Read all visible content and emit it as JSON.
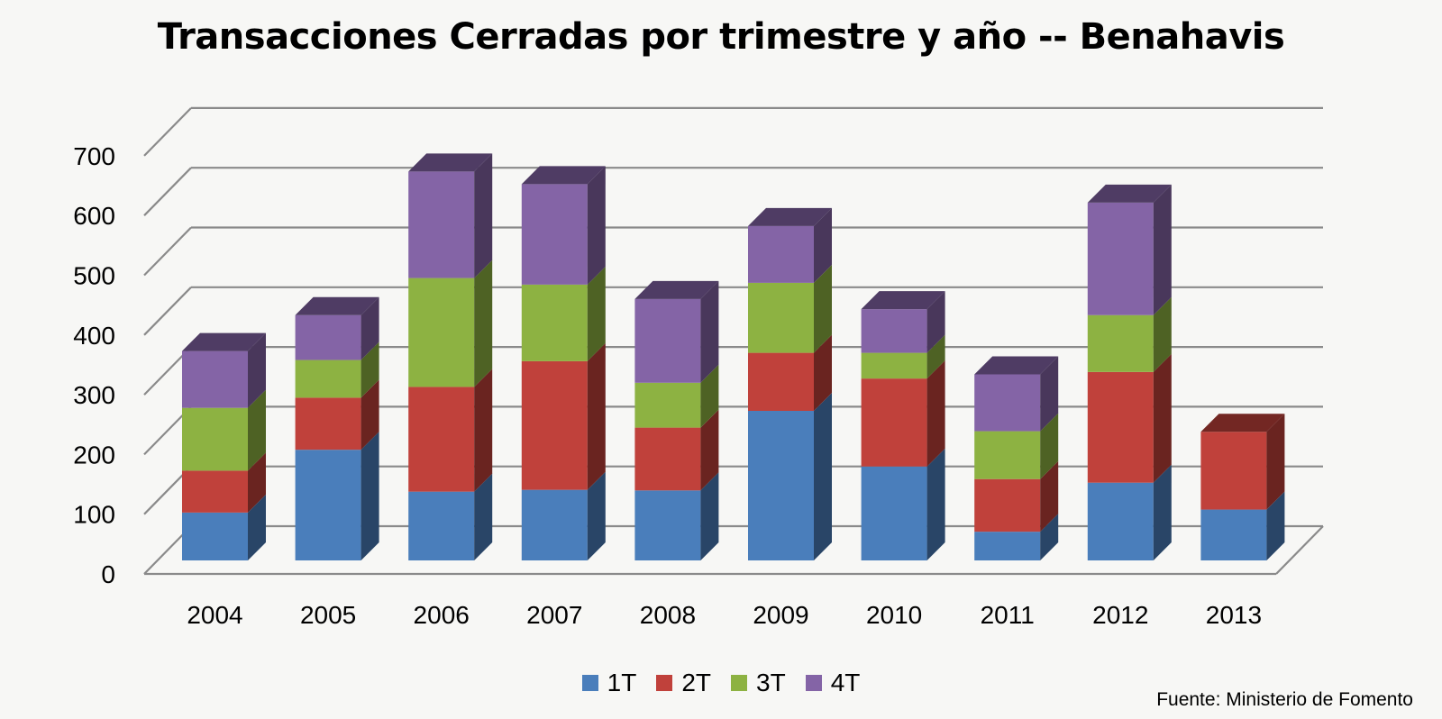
{
  "chart_data": {
    "type": "bar",
    "stacked": true,
    "title": "Transacciones Cerradas por trimestre y año -- Benahavis",
    "xlabel": "",
    "ylabel": "",
    "ylim": [
      0,
      700
    ],
    "yticks": [
      "0",
      "100",
      "200",
      "300",
      "400",
      "500",
      "600",
      "700"
    ],
    "categories": [
      "2004",
      "2005",
      "2006",
      "2007",
      "2008",
      "2009",
      "2010",
      "2011",
      "2012",
      "2013"
    ],
    "series": [
      {
        "name": "1T",
        "color": "#4a7ebb",
        "values": [
          80,
          185,
          115,
          118,
          117,
          250,
          157,
          48,
          130,
          85
        ]
      },
      {
        "name": "2T",
        "color": "#c0413b",
        "values": [
          70,
          87,
          175,
          215,
          105,
          97,
          147,
          88,
          185,
          130
        ]
      },
      {
        "name": "3T",
        "color": "#8db242",
        "values": [
          105,
          63,
          182,
          128,
          75,
          117,
          43,
          80,
          95,
          0
        ]
      },
      {
        "name": "4T",
        "color": "#8464a6",
        "values": [
          95,
          75,
          178,
          168,
          140,
          95,
          73,
          95,
          188,
          0
        ]
      }
    ],
    "legend_position": "bottom",
    "grid": true
  },
  "source_note": "Fuente: Ministerio de Fomento"
}
